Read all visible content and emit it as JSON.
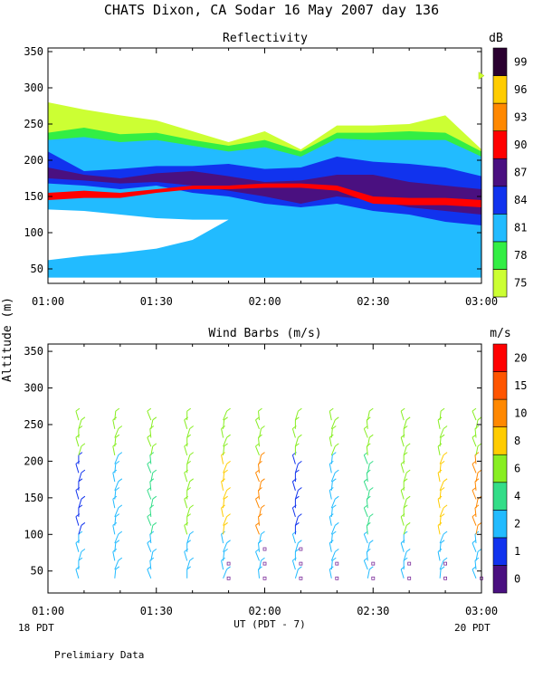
{
  "title": "CHATS Dixon, CA  Sodar  16 May 2007  day 136",
  "ylabel": "Altitude (m)",
  "xlabel": "UT  (PDT - 7)",
  "x_start_label": "18 PDT",
  "x_end_label": "20 PDT",
  "footnote": "Prelimiary Data",
  "chart_data": [
    {
      "type": "heatmap",
      "title": "Reflectivity",
      "x_ticks": [
        "01:00",
        "01:30",
        "02:00",
        "02:30",
        "03:00"
      ],
      "x_range": [
        "01:00",
        "03:00"
      ],
      "y_ticks": [
        50,
        100,
        150,
        200,
        250,
        300,
        350
      ],
      "ylim": [
        30,
        355
      ],
      "colorbar": {
        "unit": "dB",
        "ticks": [
          75,
          78,
          81,
          84,
          87,
          90,
          93,
          96,
          99
        ],
        "colors": [
          "#ccff33",
          "#33ee44",
          "#22bbff",
          "#1133ee",
          "#4a1080",
          "#ff0000",
          "#ff8800",
          "#ffcc00",
          "#2a0030"
        ]
      },
      "marker_value_dB": 97.5,
      "layer_colors": [
        "#ccff33",
        "#33ee44",
        "#22bbff",
        "#1133ee",
        "#4a1080",
        "#ff0000"
      ],
      "x_minutes": [
        0,
        10,
        20,
        30,
        40,
        50,
        60,
        70,
        80,
        90,
        100,
        110,
        120
      ],
      "layers": [
        {
          "level": 75,
          "upper": [
            280,
            270,
            262,
            255,
            240,
            225,
            240,
            215,
            248,
            248,
            250,
            262,
            215
          ],
          "lower": [
            55,
            62,
            62,
            68,
            80,
            85,
            88,
            88,
            78,
            75,
            68,
            62,
            60
          ]
        },
        {
          "level": 78,
          "upper": [
            238,
            245,
            236,
            238,
            228,
            220,
            228,
            212,
            238,
            238,
            240,
            238,
            212
          ],
          "lower": [
            45,
            50,
            50,
            55,
            70,
            75,
            78,
            75,
            70,
            65,
            55,
            50,
            50
          ]
        },
        {
          "level": 81,
          "upper": [
            228,
            232,
            225,
            228,
            220,
            212,
            218,
            205,
            230,
            228,
            228,
            228,
            205
          ],
          "lower": [
            38,
            38,
            38,
            38,
            38,
            38,
            38,
            38,
            38,
            38,
            38,
            38,
            38
          ]
        },
        {
          "level": 84,
          "upper": [
            212,
            185,
            188,
            192,
            192,
            195,
            188,
            190,
            205,
            198,
            195,
            190,
            178
          ],
          "lower": [
            168,
            165,
            160,
            165,
            155,
            150,
            140,
            135,
            140,
            130,
            125,
            115,
            110
          ]
        },
        {
          "level": 87,
          "upper": [
            190,
            180,
            175,
            182,
            185,
            178,
            170,
            172,
            180,
            180,
            170,
            165,
            160
          ],
          "lower": [
            175,
            172,
            168,
            170,
            165,
            158,
            150,
            140,
            150,
            145,
            135,
            130,
            125
          ]
        },
        {
          "level": 90,
          "upper": [
            155,
            158,
            155,
            160,
            165,
            165,
            168,
            168,
            165,
            150,
            148,
            148,
            145
          ],
          "lower": [
            145,
            148,
            148,
            155,
            160,
            160,
            162,
            162,
            158,
            140,
            138,
            138,
            135
          ]
        }
      ],
      "clear_region": {
        "x_minutes": [
          0,
          10,
          20,
          30,
          40,
          50
        ],
        "upper": [
          132,
          130,
          125,
          120,
          118,
          118
        ],
        "lower": [
          62,
          68,
          72,
          78,
          90,
          118
        ]
      }
    },
    {
      "type": "scatter",
      "title": "Wind Barbs (m/s)",
      "x_ticks": [
        "01:00",
        "01:30",
        "02:00",
        "02:30",
        "03:00"
      ],
      "x_range": [
        "01:00",
        "03:00"
      ],
      "y_ticks": [
        50,
        100,
        150,
        200,
        250,
        300,
        350
      ],
      "ylim": [
        20,
        360
      ],
      "colorbar": {
        "unit": "m/s",
        "ticks": [
          0,
          1,
          2,
          4,
          6,
          8,
          10,
          15,
          20
        ],
        "colors": [
          "#4a1080",
          "#1133ee",
          "#22bbff",
          "#33dd88",
          "#88ee22",
          "#ffcc00",
          "#ff8800",
          "#ff5500",
          "#ff0000"
        ]
      },
      "x_minutes": [
        10,
        20,
        30,
        40,
        50,
        60,
        70,
        80,
        90,
        100,
        110,
        120
      ],
      "calm_points": [
        {
          "x": 50,
          "heights": [
            40,
            60
          ]
        },
        {
          "x": 60,
          "heights": [
            40,
            60,
            80
          ]
        },
        {
          "x": 70,
          "heights": [
            40,
            60,
            80
          ]
        },
        {
          "x": 80,
          "heights": [
            40,
            60
          ]
        },
        {
          "x": 90,
          "heights": [
            40,
            60
          ]
        },
        {
          "x": 100,
          "heights": [
            40,
            60
          ]
        },
        {
          "x": 110,
          "heights": [
            40,
            60
          ]
        },
        {
          "x": 120,
          "heights": [
            40
          ]
        }
      ]
    }
  ]
}
